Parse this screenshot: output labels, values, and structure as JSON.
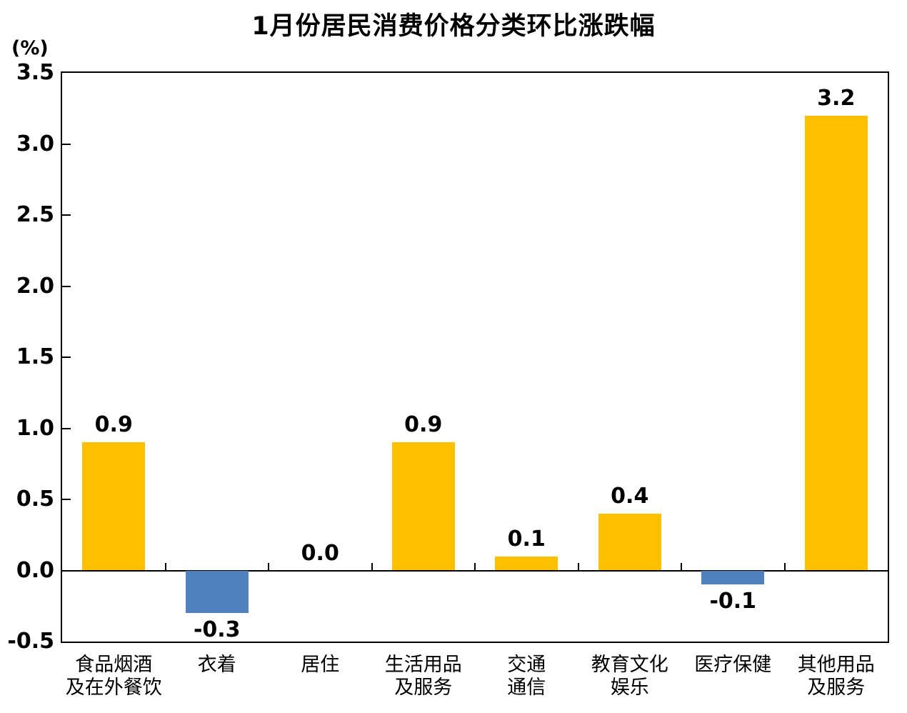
{
  "chart_data": {
    "type": "bar",
    "title": "1月份居民消费价格分类环比涨跌幅",
    "ylabel": "(%)",
    "xlabel": "",
    "ylim": [
      -0.5,
      3.5
    ],
    "ytick_step": 0.5,
    "ytick_labels": [
      "3.5",
      "3.0",
      "2.5",
      "2.0",
      "1.5",
      "1.0",
      "0.5",
      "0.0",
      "-0.5"
    ],
    "categories": [
      [
        "食品烟酒",
        "及在外餐饮"
      ],
      [
        "衣着"
      ],
      [
        "居住"
      ],
      [
        "生活用品",
        "及服务"
      ],
      [
        "交通",
        "通信"
      ],
      [
        "教育文化",
        "娱乐"
      ],
      [
        "医疗保健"
      ],
      [
        "其他用品",
        "及服务"
      ]
    ],
    "values": [
      0.9,
      -0.3,
      0.0,
      0.9,
      0.1,
      0.4,
      -0.1,
      3.2
    ],
    "value_labels": [
      "0.9",
      "-0.3",
      "0.0",
      "0.9",
      "0.1",
      "0.4",
      "-0.1",
      "3.2"
    ],
    "colors": {
      "positive_bar": "#FFC000",
      "negative_bar": "#4F81BD",
      "axis": "#000000",
      "background": "#FFFFFF"
    },
    "grid": false,
    "legend": false
  }
}
